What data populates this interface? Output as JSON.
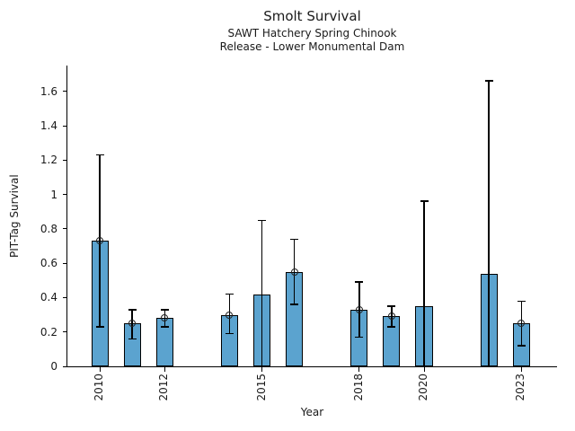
{
  "chart_data": {
    "type": "bar",
    "title": "Smolt Survival",
    "subtitle": [
      "SAWT Hatchery Spring Chinook",
      "Release - Lower Monumental Dam"
    ],
    "xlabel": "Year",
    "ylabel": "PIT-Tag Survival",
    "ylim": [
      0,
      1.75
    ],
    "xlim": [
      2009.0,
      2024.1
    ],
    "yticks": [
      0,
      0.2,
      0.4,
      0.6,
      0.8,
      1,
      1.2,
      1.4,
      1.6
    ],
    "xticks": [
      2010,
      2012,
      2015,
      2018,
      2020,
      2023
    ],
    "grid": false,
    "legend": "none",
    "bar_color": "#5ba3cf",
    "bar_edge_color": "#000000",
    "error_bar_color": "#000000",
    "marker_style": "open-circle",
    "bar_width_years": 0.53,
    "series": [
      {
        "name": "PIT-Tag Survival",
        "points": [
          {
            "year": 2010,
            "value": 0.73,
            "err_low": 0.23,
            "err_high": 1.23,
            "marker": true
          },
          {
            "year": 2011,
            "value": 0.25,
            "err_low": 0.16,
            "err_high": 0.33,
            "marker": true
          },
          {
            "year": 2012,
            "value": 0.28,
            "err_low": 0.23,
            "err_high": 0.33,
            "marker": true
          },
          {
            "year": 2014,
            "value": 0.3,
            "err_low": 0.19,
            "err_high": 0.42,
            "marker": true
          },
          {
            "year": 2015,
            "value": 0.42,
            "err_low": 0.0,
            "err_high": 0.85,
            "marker": false
          },
          {
            "year": 2016,
            "value": 0.55,
            "err_low": 0.36,
            "err_high": 0.74,
            "marker": true
          },
          {
            "year": 2018,
            "value": 0.33,
            "err_low": 0.17,
            "err_high": 0.49,
            "marker": true
          },
          {
            "year": 2019,
            "value": 0.29,
            "err_low": 0.23,
            "err_high": 0.35,
            "marker": true
          },
          {
            "year": 2020,
            "value": 0.35,
            "err_low": 0.0,
            "err_high": 0.96,
            "marker": false
          },
          {
            "year": 2022,
            "value": 0.54,
            "err_low": 0.0,
            "err_high": 1.66,
            "marker": false
          },
          {
            "year": 2023,
            "value": 0.25,
            "err_low": 0.12,
            "err_high": 0.38,
            "marker": true
          }
        ]
      }
    ]
  }
}
